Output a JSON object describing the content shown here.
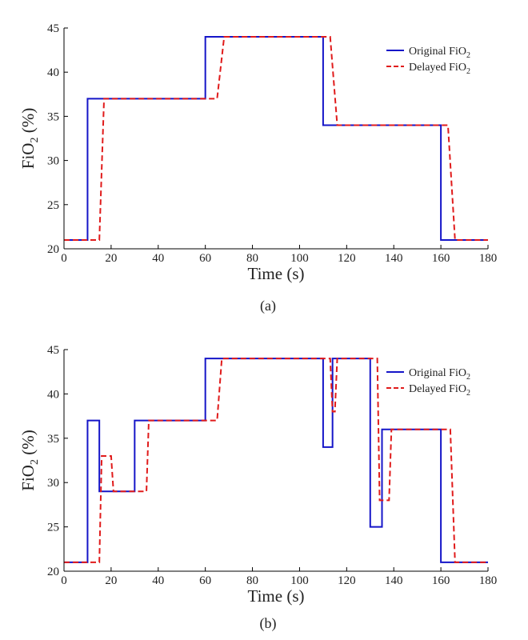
{
  "chart_data": [
    {
      "type": "line",
      "panel_label": "(a)",
      "xlabel": "Time (s)",
      "ylabel": "FiO",
      "ylabel_sub": "2",
      "ylabel_suffix": " (%)",
      "xlim": [
        0,
        180
      ],
      "ylim": [
        20,
        45
      ],
      "xticks": [
        "0",
        "20",
        "40",
        "60",
        "80",
        "100",
        "120",
        "140",
        "160",
        "180"
      ],
      "yticks": [
        "20",
        "25",
        "30",
        "35",
        "40",
        "45"
      ],
      "grid": false,
      "legend_position": "top-right",
      "series": [
        {
          "name": "Original FiO",
          "name_sub": "2",
          "color": "#1515c8",
          "dash": "solid",
          "x": [
            0,
            10,
            10,
            60,
            60,
            110,
            110,
            160,
            160,
            180
          ],
          "y": [
            21,
            21,
            37,
            37,
            44,
            44,
            34,
            34,
            21,
            21
          ]
        },
        {
          "name": "Delayed FiO",
          "name_sub": "2",
          "color": "#e01b1b",
          "dash": "dashed",
          "x": [
            0,
            15,
            17,
            65,
            68,
            113,
            116,
            163,
            166,
            180
          ],
          "y": [
            21,
            21,
            37,
            37,
            44,
            44,
            34,
            34,
            21,
            21
          ]
        }
      ]
    },
    {
      "type": "line",
      "panel_label": "(b)",
      "xlabel": "Time (s)",
      "ylabel": "FiO",
      "ylabel_sub": "2",
      "ylabel_suffix": " (%)",
      "xlim": [
        0,
        180
      ],
      "ylim": [
        20,
        45
      ],
      "xticks": [
        "0",
        "20",
        "40",
        "60",
        "80",
        "100",
        "120",
        "140",
        "160",
        "180"
      ],
      "yticks": [
        "20",
        "25",
        "30",
        "35",
        "40",
        "45"
      ],
      "grid": false,
      "legend_position": "top-right",
      "series": [
        {
          "name": "Original FiO",
          "name_sub": "2",
          "color": "#1515c8",
          "dash": "solid",
          "x": [
            0,
            10,
            10,
            15,
            15,
            30,
            30,
            60,
            60,
            110,
            110,
            114,
            114,
            130,
            130,
            135,
            135,
            160,
            160,
            180
          ],
          "y": [
            21,
            21,
            37,
            37,
            29,
            29,
            37,
            37,
            44,
            44,
            34,
            34,
            44,
            44,
            25,
            25,
            36,
            36,
            21,
            21
          ]
        },
        {
          "name": "Delayed FiO",
          "name_sub": "2",
          "color": "#e01b1b",
          "dash": "dashed",
          "x": [
            0,
            15,
            16,
            20,
            21,
            35,
            36,
            65,
            67,
            113,
            114,
            115,
            116,
            133,
            134,
            138,
            139,
            164,
            166,
            180
          ],
          "y": [
            21,
            21,
            33,
            33,
            29,
            29,
            37,
            37,
            44,
            44,
            38,
            38,
            44,
            44,
            28,
            28,
            36,
            36,
            21,
            21
          ]
        }
      ]
    }
  ]
}
